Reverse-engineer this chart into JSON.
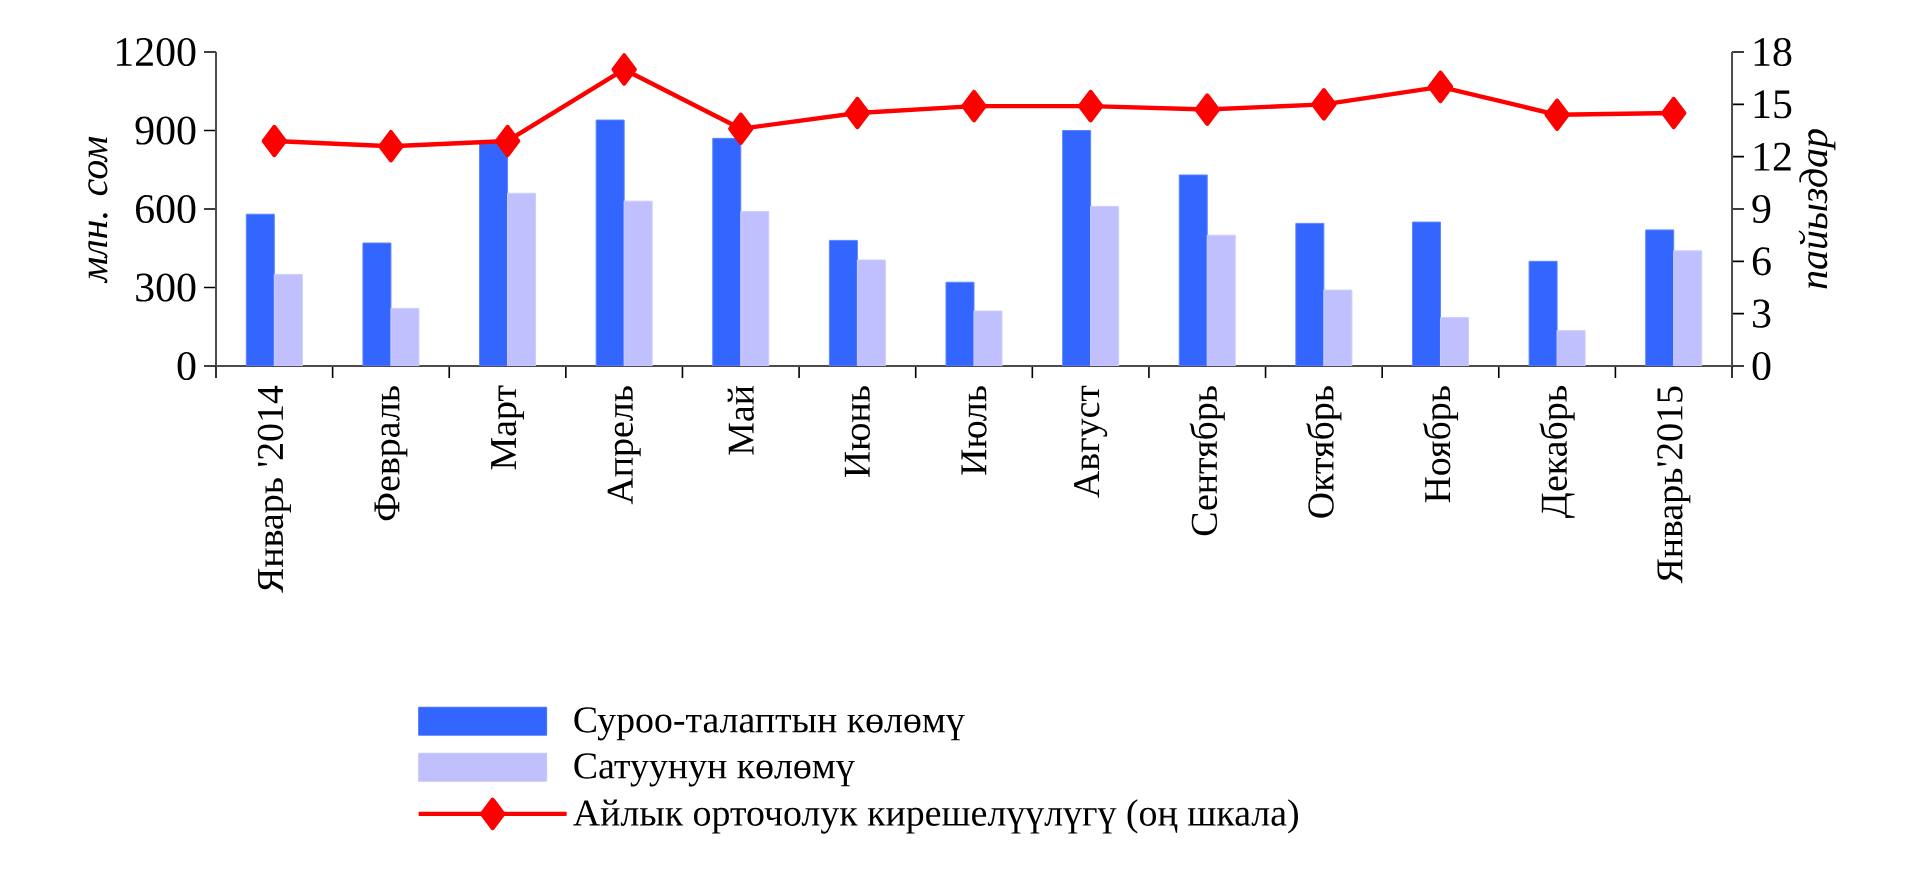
{
  "chart_data": {
    "type": "bar",
    "ylabel": "млн. сом",
    "y2label": "пайыздар",
    "categories": [
      "Январь '2014",
      "Февраль",
      "Март",
      "Апрель",
      "Май",
      "Июнь",
      "Июль",
      "Август",
      "Сентябрь",
      "Октябрь",
      "Ноябрь",
      "Декабрь",
      "Январь'2015"
    ],
    "ylim": [
      0,
      1200
    ],
    "yticks": [
      0,
      300,
      600,
      900,
      1200
    ],
    "y2lim": [
      0,
      18
    ],
    "y2ticks": [
      0,
      3,
      6,
      9,
      12,
      15,
      18
    ],
    "legend": "bottom",
    "marker": "diamond",
    "series": [
      {
        "name": "Суроо-талаптын көлөмү",
        "color": "#3366ff",
        "values": [
          580,
          470,
          850,
          940,
          870,
          480,
          320,
          900,
          730,
          545,
          550,
          400,
          520
        ]
      },
      {
        "name": "Сатуунун көлөмү",
        "color": "#c0c0ff",
        "values": [
          350,
          220,
          660,
          630,
          590,
          405,
          210,
          610,
          500,
          290,
          185,
          135,
          440
        ]
      },
      {
        "name": "Айлык орточолук кирешелүүлүгү (оң шкала)",
        "type": "line",
        "axis": "y2",
        "color": "#ff0000",
        "values": [
          12.9,
          12.6,
          12.9,
          17.0,
          13.6,
          14.5,
          14.9,
          14.9,
          14.7,
          15.0,
          16.0,
          14.4,
          14.5
        ]
      }
    ]
  }
}
